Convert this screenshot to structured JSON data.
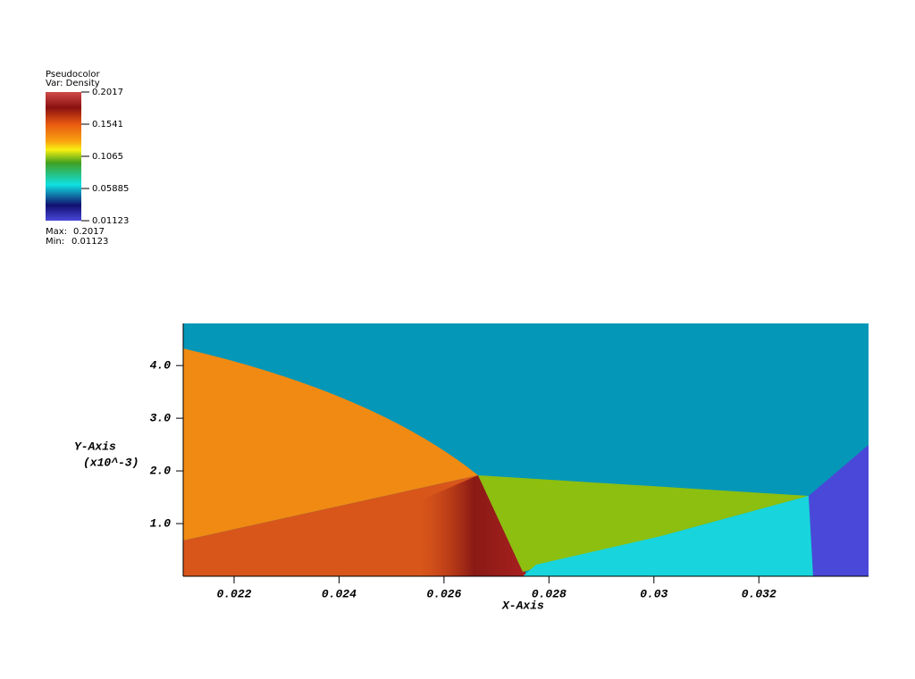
{
  "chart_data": {
    "type": "pseudocolor",
    "legend": {
      "title": "Pseudocolor",
      "variable": "Var: Density",
      "ticks": [
        0.2017,
        0.1541,
        0.1065,
        0.05885,
        0.01123
      ],
      "max_label": "Max:",
      "max": 0.2017,
      "min_label": "Min:",
      "min": 0.01123
    },
    "x_label": "X-Axis",
    "y_label": "Y-Axis",
    "y_label_scale": "(x10^-3)",
    "xlim": [
      0.02103,
      0.03409
    ],
    "xticks": [
      0.022,
      0.024,
      0.026,
      0.028,
      0.03,
      0.032
    ],
    "ylim": [
      0,
      4.8
    ],
    "yticks": [
      {
        "value": 1,
        "label": "1.0"
      },
      {
        "value": 2,
        "label": "2.0"
      },
      {
        "value": 3,
        "label": "3.0"
      },
      {
        "value": 4,
        "label": "4.0"
      }
    ]
  }
}
